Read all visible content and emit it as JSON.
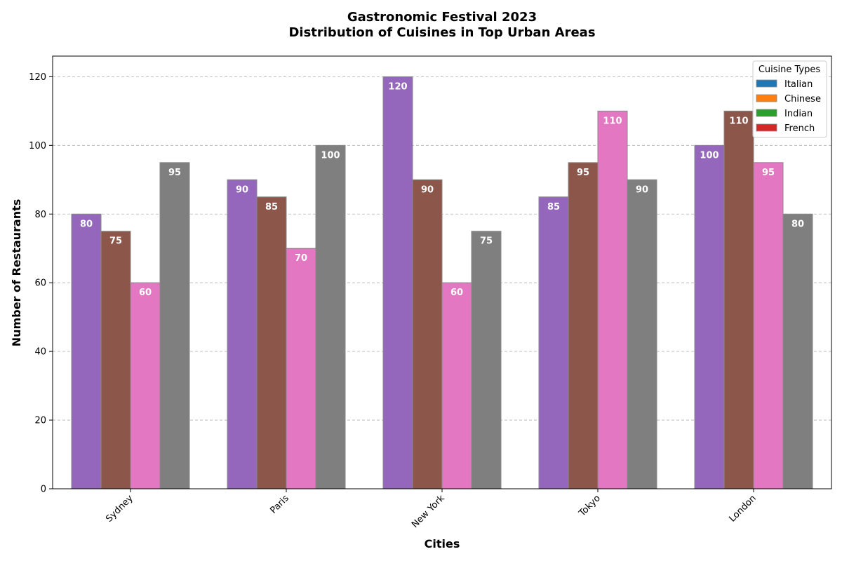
{
  "chart_data": {
    "type": "bar",
    "title": "Gastronomic Festival 2023",
    "subtitle": "Distribution of Cuisines in Top Urban Areas",
    "xlabel": "Cities",
    "ylabel": "Number of Restaurants",
    "categories": [
      "Sydney",
      "Paris",
      "New York",
      "Tokyo",
      "London"
    ],
    "ylim": [
      0,
      126
    ],
    "yticks": [
      "0",
      "20",
      "40",
      "60",
      "80",
      "100",
      "120"
    ],
    "grid": true,
    "legend_title": "Cuisine Types",
    "legend_position": "top-right",
    "series": [
      {
        "name": "Italian",
        "bar_color": "#9467bd",
        "legend_color": "#1f77b4",
        "values": [
          80,
          90,
          120,
          85,
          100
        ]
      },
      {
        "name": "Chinese",
        "bar_color": "#8c564b",
        "legend_color": "#ff7f0e",
        "values": [
          75,
          85,
          90,
          95,
          110
        ]
      },
      {
        "name": "Indian",
        "bar_color": "#e377c2",
        "legend_color": "#2ca02c",
        "values": [
          60,
          70,
          60,
          110,
          95
        ]
      },
      {
        "name": "French",
        "bar_color": "#7f7f7f",
        "legend_color": "#d62728",
        "values": [
          95,
          100,
          75,
          90,
          80
        ]
      }
    ]
  }
}
